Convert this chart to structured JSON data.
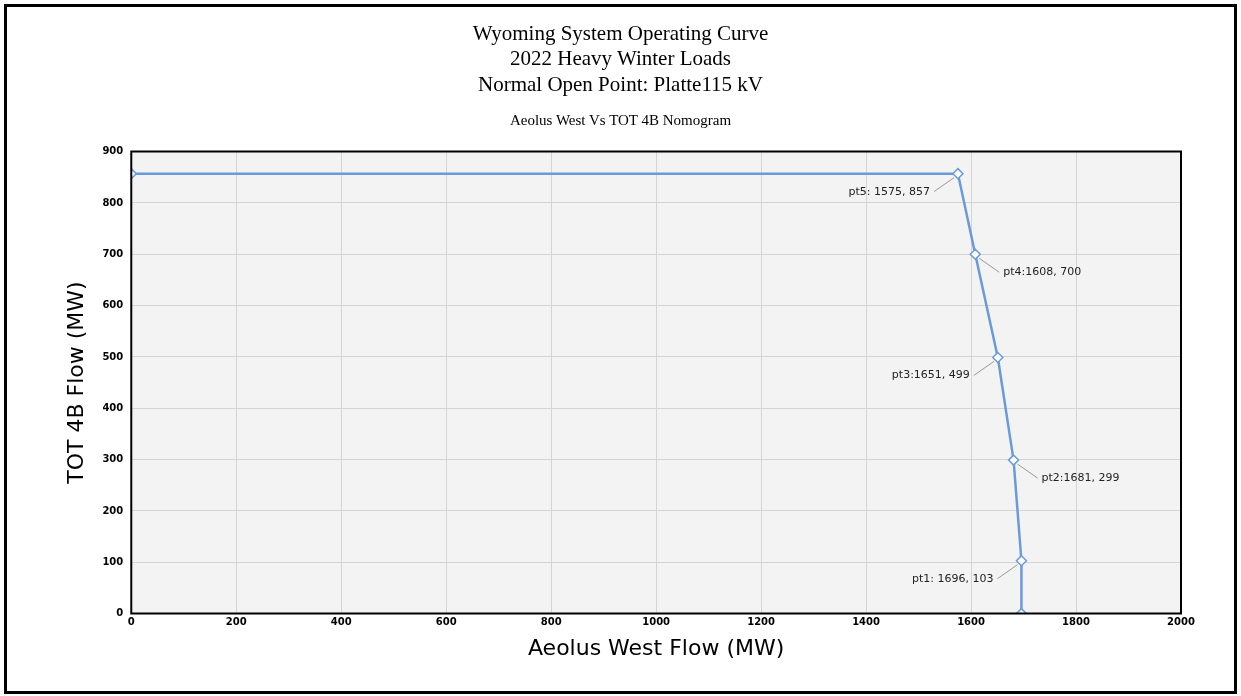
{
  "chart_data": {
    "type": "line",
    "title": [
      "Wyoming System Operating Curve",
      "2022 Heavy Winter Loads",
      "Normal Open Point: Platte115 kV"
    ],
    "subtitle": "Aeolus West Vs TOT 4B Nomogram",
    "xlabel": "Aeolus West Flow (MW)",
    "ylabel": "TOT 4B Flow (MW)",
    "series": [
      {
        "color": "#6a9bd8",
        "x": [
          0,
          1575,
          1608,
          1651,
          1681,
          1696,
          1696
        ],
        "values": [
          857,
          857,
          700,
          499,
          299,
          103,
          0
        ]
      }
    ],
    "xlim": [
      0,
      2000
    ],
    "xticks": [
      0,
      200,
      400,
      600,
      800,
      1000,
      1200,
      1400,
      1600,
      1800,
      2000
    ],
    "ylim": [
      0,
      900
    ],
    "yticks": [
      0,
      100,
      200,
      300,
      400,
      500,
      600,
      700,
      800,
      900
    ],
    "grid": true,
    "legend": false,
    "marker": "diamond",
    "line_style": "solid",
    "annotations": [
      {
        "text": "pt5: 1575, 857",
        "x": 1575,
        "y": 857
      },
      {
        "text": "pt4:1608, 700",
        "x": 1608,
        "y": 700
      },
      {
        "text": "pt3:1651, 499",
        "x": 1651,
        "y": 499
      },
      {
        "text": "pt2:1681, 299",
        "x": 1681,
        "y": 299
      },
      {
        "text": "pt1: 1696, 103",
        "x": 1696,
        "y": 103
      }
    ]
  }
}
